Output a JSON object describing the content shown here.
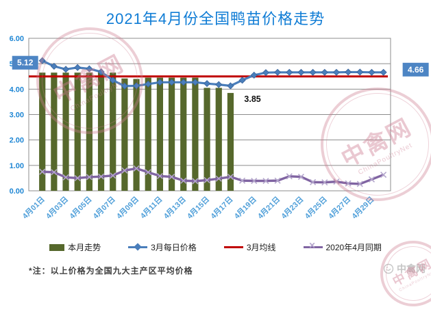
{
  "title": "2021年4月份全国鸭苗价格走势",
  "chart_data": {
    "type": "line",
    "title": "2021年4月份全国鸭苗价格走势",
    "ylim": [
      0,
      6
    ],
    "yticks": [
      6,
      5,
      4,
      3,
      2,
      1,
      0
    ],
    "ytick_labels": [
      "6.00",
      "5.00",
      "4.00",
      "3.00",
      "2.00",
      "1.00",
      "0.00"
    ],
    "x_labels": [
      "4月01日",
      "4月03日",
      "4月05日",
      "4月07日",
      "4月09日",
      "4月11日",
      "4月13日",
      "4月15日",
      "4月17日",
      "4月19日",
      "4月21日",
      "4月23日",
      "4月25日",
      "4月27日",
      "4月29日"
    ],
    "days": 30,
    "grid": true,
    "legend_position": "bottom",
    "series": [
      {
        "name": "本月走势",
        "type": "bar",
        "color": "#56682c",
        "values": [
          4.65,
          4.65,
          4.65,
          4.65,
          4.65,
          4.65,
          4.65,
          4.42,
          4.4,
          4.45,
          4.45,
          4.45,
          4.45,
          4.45,
          4.05,
          4.05,
          3.85
        ]
      },
      {
        "name": "3月每日价格",
        "type": "line",
        "marker": "diamond",
        "color": "#4a7ebb",
        "marker_color": "#4a7ebb",
        "values": [
          5.12,
          4.9,
          4.78,
          4.85,
          4.8,
          4.68,
          4.35,
          4.12,
          4.13,
          4.2,
          4.27,
          4.27,
          4.27,
          4.27,
          4.22,
          4.18,
          4.13,
          4.35,
          4.55,
          4.65,
          4.66,
          4.66,
          4.66,
          4.66,
          4.66,
          4.66,
          4.67,
          4.67,
          4.66,
          4.66
        ]
      },
      {
        "name": "3月均线",
        "type": "hline",
        "color": "#c00000",
        "value": 4.5
      },
      {
        "name": "2020年4月同期",
        "type": "line",
        "marker": "x",
        "color": "#8064a2",
        "marker_color": "#b4a6cc",
        "values": [
          0.75,
          0.73,
          0.53,
          0.5,
          0.54,
          0.56,
          0.6,
          0.8,
          0.88,
          0.73,
          0.58,
          0.55,
          0.4,
          0.38,
          0.42,
          0.48,
          0.55,
          0.4,
          0.39,
          0.39,
          0.4,
          0.57,
          0.55,
          0.34,
          0.33,
          0.36,
          0.29,
          0.27,
          0.45,
          0.63
        ]
      }
    ],
    "annotations": [
      {
        "text": "5.12",
        "day": 0,
        "value": 5.12,
        "style": "box"
      },
      {
        "text": "4.66",
        "day": 29,
        "value": 4.66,
        "style": "box"
      },
      {
        "text": "3.85",
        "day": 16,
        "value": 3.85,
        "style": "plain"
      }
    ]
  },
  "legend": {
    "items": [
      {
        "label": "本月走势"
      },
      {
        "label": "3月每日价格"
      },
      {
        "label": "3月均线"
      },
      {
        "label": "2020年4月同期"
      }
    ]
  },
  "note": "*注：以上价格为全国九大主产区平均价格",
  "logo": {
    "text": "中禽网"
  },
  "watermark": {
    "zh": "中禽网",
    "en": "ChinaPoultryNet"
  },
  "colors": {
    "title": "#0f7cd5",
    "axis_labels": "#1e86d4",
    "x_labels": "#4f9fd9",
    "gridline": "#8c8c8c",
    "bar": "#56682c",
    "line_march": "#4a7ebb",
    "line_average": "#c00000",
    "line_2020": "#8064a2",
    "label_box": "#4d85c4"
  }
}
